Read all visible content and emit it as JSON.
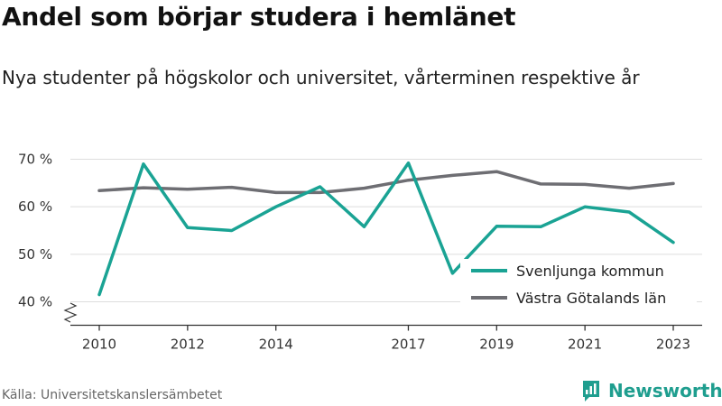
{
  "title": "Andel som börjar studera i hemlänet",
  "subtitle": "Nya studenter på högskolor och universitet, vårterminen respektive år",
  "source": "Källa: Universitetskanslersämbetet",
  "brand": "Newsworthy",
  "colors": {
    "svenljunga": "#1aa394",
    "vastra_gotaland": "#6e6e73",
    "grid": "#dddddd",
    "axis": "#333333",
    "brand": "#1f9e8f"
  },
  "chart_data": {
    "type": "line",
    "title": "Andel som börjar studera i hemlänet",
    "subtitle": "Nya studenter på högskolor och universitet, vårterminen respektive år",
    "x": [
      2010,
      2011,
      2012,
      2013,
      2014,
      2015,
      2016,
      2017,
      2018,
      2019,
      2020,
      2021,
      2022,
      2023
    ],
    "x_ticks": [
      2010,
      2012,
      2014,
      2017,
      2019,
      2021,
      2023
    ],
    "y_ticks": [
      40,
      50,
      60,
      70
    ],
    "y_tick_labels": [
      "40 %",
      "50 %",
      "60 %",
      "70 %"
    ],
    "ylim": [
      38,
      72
    ],
    "y_axis_break": true,
    "grid": true,
    "legend_position": "bottom-right",
    "series": [
      {
        "name": "Svenljunga kommun",
        "color": "#1aa394",
        "values": [
          41.5,
          69.0,
          55.6,
          55.0,
          60.0,
          64.2,
          55.8,
          69.2,
          46.0,
          55.9,
          55.8,
          60.0,
          58.9,
          52.5
        ]
      },
      {
        "name": "Västra Götalands län",
        "color": "#6e6e73",
        "values": [
          63.4,
          64.0,
          63.7,
          64.1,
          63.0,
          63.0,
          63.9,
          65.6,
          66.6,
          67.4,
          64.8,
          64.7,
          63.9,
          64.9
        ]
      }
    ]
  }
}
